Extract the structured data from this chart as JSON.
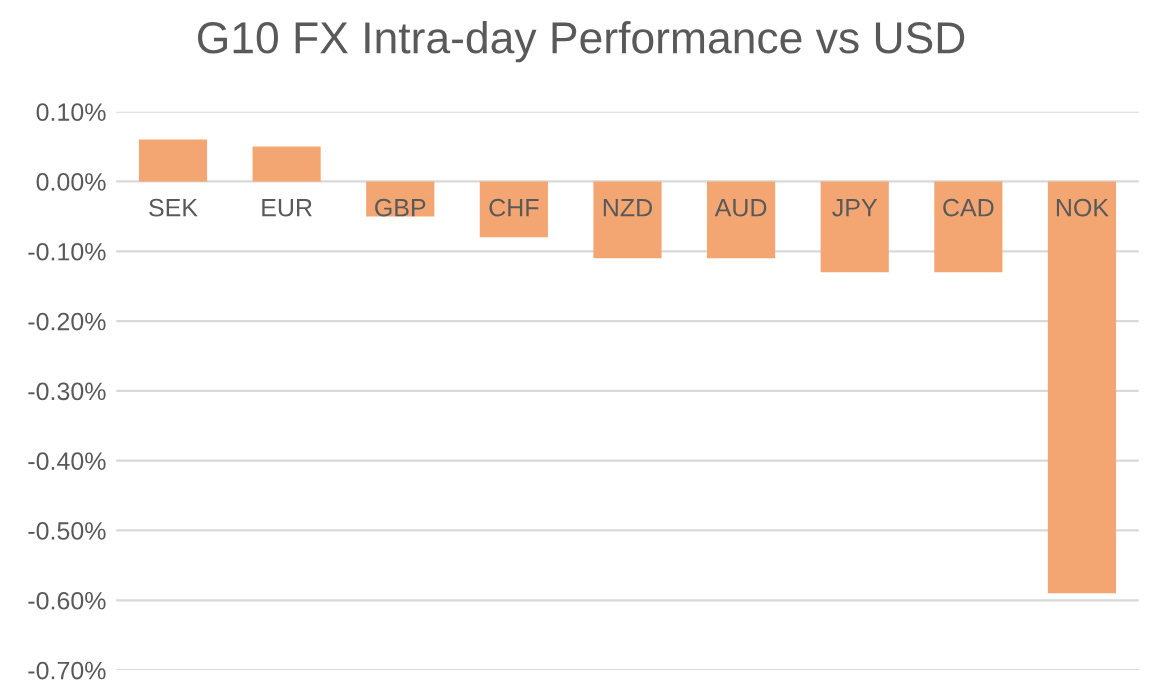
{
  "chart_data": {
    "type": "bar",
    "title": "G10 FX Intra-day Performance vs USD",
    "categories": [
      "SEK",
      "EUR",
      "GBP",
      "CHF",
      "NZD",
      "AUD",
      "JPY",
      "CAD",
      "NOK"
    ],
    "values": [
      0.06,
      0.05,
      -0.05,
      -0.08,
      -0.11,
      -0.11,
      -0.13,
      -0.13,
      -0.59
    ],
    "color": "#f4a672",
    "ylim": [
      -0.7,
      0.1
    ],
    "yticks": [
      {
        "value": 0.1,
        "label": "0.10%"
      },
      {
        "value": 0.0,
        "label": "0.00%"
      },
      {
        "value": -0.1,
        "label": "-0.10%"
      },
      {
        "value": -0.2,
        "label": "-0.20%"
      },
      {
        "value": -0.3,
        "label": "-0.30%"
      },
      {
        "value": -0.4,
        "label": "-0.40%"
      },
      {
        "value": -0.5,
        "label": "-0.50%"
      },
      {
        "value": -0.6,
        "label": "-0.60%"
      },
      {
        "value": -0.7,
        "label": "-0.70%"
      }
    ],
    "grid": "y",
    "legend": false
  }
}
